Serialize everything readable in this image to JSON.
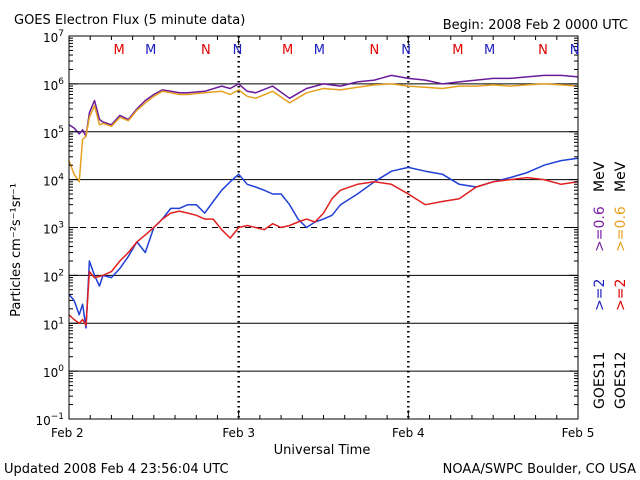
{
  "chart_data": {
    "type": "line",
    "title": "GOES Electron Flux (5 minute data)",
    "begin_label": "Begin: 2008 Feb 2 0000 UTC",
    "updated_label": "Updated 2008 Feb  4 23:56:04 UTC",
    "credit_label": "NOAA/SWPC Boulder, CO USA",
    "xlabel": "Universal Time",
    "ylabel": "Particles cm⁻²s⁻¹sr⁻¹",
    "x_unit": "days since 2008 Feb 2 0000 UTC",
    "xlim": [
      0,
      3
    ],
    "y_scale": "log",
    "ylim_exp": [
      -1,
      7
    ],
    "x_ticks": [
      {
        "x": 0,
        "label": "Feb 2"
      },
      {
        "x": 1,
        "label": "Feb 3"
      },
      {
        "x": 2,
        "label": "Feb 4"
      },
      {
        "x": 3,
        "label": "Feb 5"
      }
    ],
    "y_ticks": [
      {
        "exp": -1,
        "base": "10",
        "sup": "−1"
      },
      {
        "exp": 0,
        "base": "10",
        "sup": "0"
      },
      {
        "exp": 1,
        "base": "10",
        "sup": "1"
      },
      {
        "exp": 2,
        "base": "10",
        "sup": "2"
      },
      {
        "exp": 3,
        "base": "10",
        "sup": "3"
      },
      {
        "exp": 4,
        "base": "10",
        "sup": "4"
      },
      {
        "exp": 5,
        "base": "10",
        "sup": "5"
      },
      {
        "exp": 6,
        "base": "10",
        "sup": "6"
      },
      {
        "exp": 7,
        "base": "10",
        "sup": "7"
      }
    ],
    "threshold_lines": [
      {
        "exp": 6,
        "style": "solid"
      },
      {
        "exp": 5,
        "style": "solid"
      },
      {
        "exp": 4,
        "style": "solid"
      },
      {
        "exp": 3,
        "style": "dashed"
      },
      {
        "exp": 2,
        "style": "solid"
      },
      {
        "exp": 1,
        "style": "solid"
      },
      {
        "exp": 0,
        "style": "solid"
      }
    ],
    "markers": [
      {
        "x": 0.3,
        "label": "M",
        "color": "#e00000"
      },
      {
        "x": 0.49,
        "label": "M",
        "color": "#2020c0"
      },
      {
        "x": 0.82,
        "label": "N",
        "color": "#e00000"
      },
      {
        "x": 1.01,
        "label": "N",
        "color": "#2020c0"
      },
      {
        "x": 1.31,
        "label": "M",
        "color": "#e00000"
      },
      {
        "x": 1.5,
        "label": "M",
        "color": "#2020c0"
      },
      {
        "x": 1.83,
        "label": "N",
        "color": "#e00000"
      },
      {
        "x": 2.02,
        "label": "N",
        "color": "#2020c0"
      },
      {
        "x": 2.33,
        "label": "M",
        "color": "#e00000"
      },
      {
        "x": 2.52,
        "label": "M",
        "color": "#2020c0"
      },
      {
        "x": 2.84,
        "label": "N",
        "color": "#e00000"
      },
      {
        "x": 3.03,
        "label": "N",
        "color": "#2020c0"
      }
    ],
    "right_legend": [
      {
        "text": "GOES11",
        "color": "#000000",
        "col": 0,
        "pos": "bottom"
      },
      {
        "text": ">=2",
        "color": "#2020c0",
        "col": 0,
        "pos": "middle"
      },
      {
        "text": ">=0.6",
        "color": "#7a20a0",
        "col": 0,
        "pos": "upper"
      },
      {
        "text": "MeV",
        "color": "#000000",
        "col": 0,
        "pos": "top"
      },
      {
        "text": "GOES12",
        "color": "#000000",
        "col": 1,
        "pos": "bottom"
      },
      {
        "text": ">=2",
        "color": "#e00000",
        "col": 1,
        "pos": "middle"
      },
      {
        "text": ">=0.6",
        "color": "#e8a020",
        "col": 1,
        "pos": "upper"
      },
      {
        "text": "MeV",
        "color": "#000000",
        "col": 1,
        "pos": "top"
      }
    ],
    "series": [
      {
        "name": "GOES11 >=0.6 MeV",
        "color": "#6a1b9a",
        "x": [
          0,
          0.03,
          0.06,
          0.08,
          0.1,
          0.12,
          0.15,
          0.18,
          0.2,
          0.25,
          0.3,
          0.35,
          0.4,
          0.45,
          0.5,
          0.55,
          0.6,
          0.65,
          0.7,
          0.8,
          0.9,
          0.95,
          1.0,
          1.05,
          1.1,
          1.2,
          1.3,
          1.4,
          1.5,
          1.6,
          1.7,
          1.8,
          1.9,
          2.0,
          2.1,
          2.2,
          2.3,
          2.4,
          2.5,
          2.6,
          2.7,
          2.8,
          2.9,
          3.0
        ],
        "y": [
          140000,
          120000,
          90000,
          110000,
          80000,
          250000,
          450000,
          180000,
          160000,
          140000,
          220000,
          180000,
          300000,
          450000,
          600000,
          750000,
          700000,
          650000,
          650000,
          700000,
          900000,
          800000,
          1000000,
          700000,
          650000,
          900000,
          500000,
          800000,
          1000000,
          900000,
          1100000,
          1200000,
          1500000,
          1300000,
          1200000,
          1000000,
          1100000,
          1200000,
          1300000,
          1300000,
          1400000,
          1500000,
          1500000,
          1400000
        ]
      },
      {
        "name": "GOES12 >=0.6 MeV",
        "color": "#e8a020",
        "x": [
          0,
          0.03,
          0.06,
          0.08,
          0.1,
          0.12,
          0.15,
          0.18,
          0.2,
          0.25,
          0.3,
          0.35,
          0.4,
          0.45,
          0.5,
          0.55,
          0.6,
          0.65,
          0.7,
          0.8,
          0.9,
          0.95,
          1.0,
          1.05,
          1.1,
          1.2,
          1.3,
          1.4,
          1.5,
          1.6,
          1.7,
          1.8,
          1.9,
          2.0,
          2.1,
          2.2,
          2.3,
          2.4,
          2.5,
          2.6,
          2.7,
          2.8,
          2.9,
          3.0
        ],
        "y": [
          25000,
          13000,
          9000,
          70000,
          80000,
          200000,
          350000,
          140000,
          150000,
          130000,
          200000,
          170000,
          280000,
          400000,
          550000,
          700000,
          650000,
          600000,
          600000,
          650000,
          700000,
          600000,
          750000,
          550000,
          500000,
          700000,
          400000,
          650000,
          800000,
          750000,
          850000,
          950000,
          1000000,
          900000,
          850000,
          800000,
          900000,
          900000,
          950000,
          900000,
          950000,
          1000000,
          950000,
          900000
        ]
      },
      {
        "name": "GOES11 >=2 MeV",
        "color": "#1f3fd6",
        "x": [
          0,
          0.03,
          0.06,
          0.08,
          0.1,
          0.12,
          0.15,
          0.18,
          0.2,
          0.25,
          0.3,
          0.35,
          0.4,
          0.45,
          0.5,
          0.55,
          0.6,
          0.65,
          0.7,
          0.75,
          0.8,
          0.85,
          0.9,
          0.95,
          1.0,
          1.05,
          1.1,
          1.15,
          1.2,
          1.25,
          1.3,
          1.35,
          1.4,
          1.45,
          1.5,
          1.55,
          1.6,
          1.7,
          1.8,
          1.9,
          2.0,
          2.1,
          2.2,
          2.3,
          2.4,
          2.5,
          2.6,
          2.7,
          2.8,
          2.9,
          3.0
        ],
        "y": [
          40,
          30,
          15,
          25,
          8,
          200,
          100,
          60,
          100,
          90,
          140,
          250,
          500,
          300,
          1000,
          1500,
          2500,
          2500,
          3000,
          3000,
          2000,
          3500,
          6000,
          9000,
          13000,
          8000,
          7000,
          6000,
          5000,
          5000,
          3000,
          1500,
          1000,
          1300,
          1500,
          1800,
          3000,
          5000,
          9000,
          15000,
          18000,
          15000,
          13000,
          8000,
          7000,
          9000,
          11000,
          14000,
          20000,
          25000,
          28000
        ]
      },
      {
        "name": "GOES12 >=2 MeV",
        "color": "#e02020",
        "x": [
          0,
          0.03,
          0.06,
          0.08,
          0.1,
          0.12,
          0.15,
          0.18,
          0.2,
          0.25,
          0.3,
          0.35,
          0.4,
          0.45,
          0.5,
          0.55,
          0.6,
          0.65,
          0.7,
          0.75,
          0.8,
          0.85,
          0.9,
          0.95,
          1.0,
          1.05,
          1.1,
          1.15,
          1.2,
          1.25,
          1.3,
          1.35,
          1.4,
          1.45,
          1.5,
          1.55,
          1.6,
          1.7,
          1.8,
          1.9,
          2.0,
          2.1,
          2.2,
          2.3,
          2.4,
          2.5,
          2.6,
          2.7,
          2.8,
          2.9,
          3.0
        ],
        "y": [
          15,
          12,
          10,
          12,
          9,
          120,
          90,
          95,
          100,
          120,
          200,
          300,
          500,
          700,
          1000,
          1500,
          2000,
          2200,
          2000,
          1800,
          1500,
          1500,
          900,
          600,
          1000,
          1100,
          1000,
          900,
          1200,
          1000,
          1100,
          1300,
          1500,
          1300,
          2000,
          4000,
          6000,
          8000,
          9000,
          8000,
          5000,
          3000,
          3500,
          4000,
          7000,
          9000,
          10000,
          11000,
          10000,
          8000,
          9000
        ]
      }
    ]
  }
}
